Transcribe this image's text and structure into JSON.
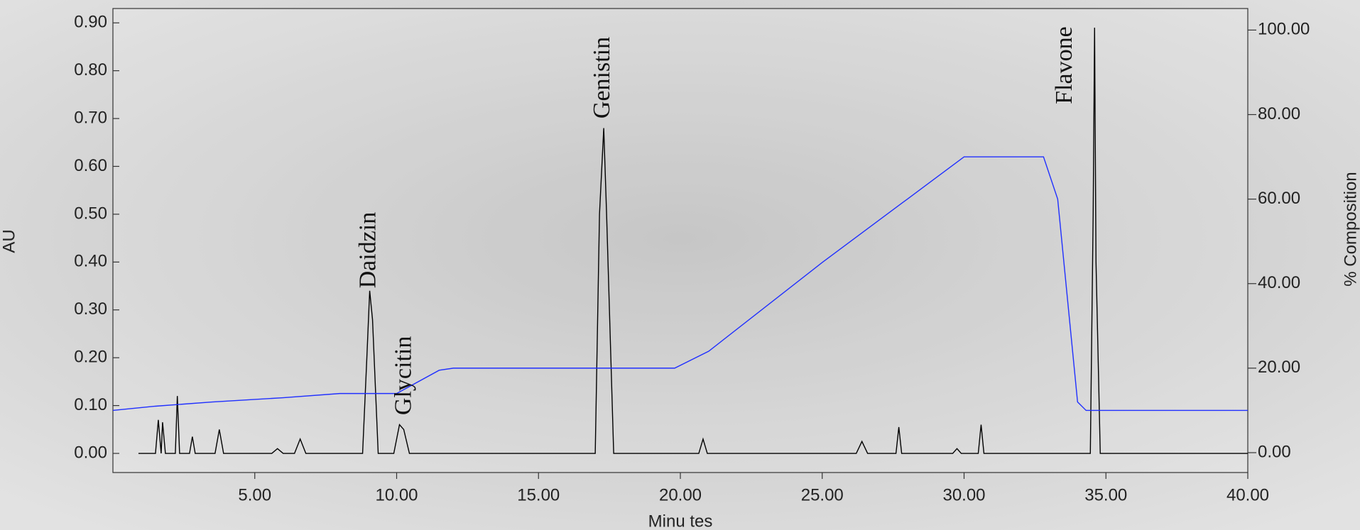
{
  "chart_data": {
    "type": "line",
    "xlabel": "Minu tes",
    "ylabel": "AU",
    "y2label": "% Composition",
    "xlim": [
      0,
      40
    ],
    "ylim": [
      -0.04,
      0.93
    ],
    "y2lim": [
      -4.7,
      105.1
    ],
    "xticks": [
      {
        "value": 5,
        "label": "5.00"
      },
      {
        "value": 10,
        "label": "10.00"
      },
      {
        "value": 15,
        "label": "15.00"
      },
      {
        "value": 20,
        "label": "20.00"
      },
      {
        "value": 25,
        "label": "25.00"
      },
      {
        "value": 30,
        "label": "30.00"
      },
      {
        "value": 35,
        "label": "35.00"
      },
      {
        "value": 40,
        "label": "40.00"
      }
    ],
    "yticks": [
      {
        "value": 0,
        "label": "0.00"
      },
      {
        "value": 0.1,
        "label": "0.10"
      },
      {
        "value": 0.2,
        "label": "0.20"
      },
      {
        "value": 0.3,
        "label": "0.30"
      },
      {
        "value": 0.4,
        "label": "0.40"
      },
      {
        "value": 0.5,
        "label": "0.50"
      },
      {
        "value": 0.6,
        "label": "0.60"
      },
      {
        "value": 0.7,
        "label": "0.70"
      },
      {
        "value": 0.8,
        "label": "0.80"
      },
      {
        "value": 0.9,
        "label": "0.90"
      }
    ],
    "y2ticks": [
      {
        "value": 0,
        "label": "0.00"
      },
      {
        "value": 20,
        "label": "20.00"
      },
      {
        "value": 40,
        "label": "40.00"
      },
      {
        "value": 60,
        "label": "60.00"
      },
      {
        "value": 80,
        "label": "80.00"
      },
      {
        "value": 100,
        "label": "100.00"
      }
    ],
    "series": [
      {
        "color": "#000000",
        "x": [
          0.9,
          1.5,
          1.6,
          1.7,
          1.75,
          1.85,
          1.95,
          2.2,
          2.27,
          2.35,
          2.7,
          2.8,
          2.9,
          3.6,
          3.75,
          3.9,
          5.6,
          5.8,
          6.0,
          6.4,
          6.6,
          6.8,
          8.8,
          8.95,
          9.05,
          9.15,
          9.35,
          9.9,
          10.1,
          10.25,
          10.45,
          11.0,
          17.0,
          17.15,
          17.3,
          17.4,
          17.65,
          20.65,
          20.8,
          20.95,
          26.2,
          26.4,
          26.6,
          27.6,
          27.7,
          27.8,
          29.6,
          29.75,
          29.9,
          30.5,
          30.6,
          30.7,
          34.45,
          34.55,
          34.6,
          34.65,
          34.8,
          40.0
        ],
        "values": [
          0,
          0,
          0.07,
          0,
          0.065,
          0,
          0,
          0,
          0.12,
          0,
          0,
          0.035,
          0,
          0,
          0.05,
          0,
          0,
          0.01,
          0,
          0,
          0.03,
          0,
          0,
          0.2,
          0.34,
          0.28,
          0,
          0,
          0.06,
          0.05,
          0,
          0,
          0,
          0.5,
          0.68,
          0.5,
          0,
          0,
          0.03,
          0,
          0,
          0.025,
          0,
          0,
          0.055,
          0,
          0,
          0.01,
          0,
          0,
          0.06,
          0,
          0,
          0.5,
          0.89,
          0.4,
          0,
          0
        ]
      },
      {
        "color": "#1f2fff",
        "axis": "y2",
        "x": [
          0,
          1.5,
          3.5,
          6,
          8,
          10,
          11.5,
          12,
          19.8,
          21,
          25,
          28,
          30,
          32.8,
          33.3,
          34,
          34.3,
          40
        ],
        "values": [
          10,
          11,
          12,
          13,
          14,
          14,
          19.5,
          20,
          20,
          24,
          45,
          60,
          70,
          70,
          60,
          12,
          10,
          10
        ]
      }
    ],
    "annotations": [
      {
        "text": "Daidzin",
        "x": 9.05,
        "y": 0.345
      },
      {
        "text": "Glycitin",
        "x": 10.3,
        "y": 0.08
      },
      {
        "text": "Genistin",
        "x": 17.3,
        "y": 0.7
      },
      {
        "text": "Flavone",
        "x": 33.6,
        "y": 0.73
      }
    ]
  }
}
